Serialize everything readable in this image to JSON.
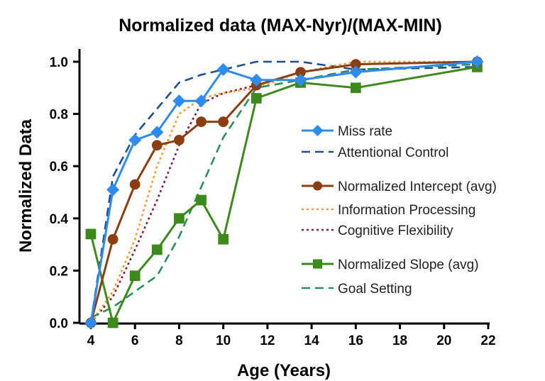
{
  "chart_data": {
    "type": "line",
    "title": "Normalized data (MAX-Nyr)/(MAX-MIN)",
    "xlabel": "Age (Years)",
    "ylabel": "Normalized Data",
    "xlim": [
      4,
      22
    ],
    "ylim": [
      0,
      1.0
    ],
    "xticks": [
      4,
      6,
      8,
      10,
      12,
      14,
      16,
      18,
      20,
      22
    ],
    "yticks": [
      0.0,
      0.2,
      0.4,
      0.6,
      0.8,
      1.0
    ],
    "xtick_labels": [
      "4",
      "6",
      "8",
      "10",
      "12",
      "14",
      "16",
      "18",
      "20",
      "22"
    ],
    "ytick_labels": [
      "0.0",
      "0.2",
      "0.4",
      "0.6",
      "0.8",
      "1.0"
    ],
    "grid": false,
    "legend_position": "right",
    "series": [
      {
        "name": "Miss rate",
        "style": "solid",
        "marker": "diamond",
        "color": "#2e8bf0",
        "x": [
          4,
          5,
          6,
          7,
          8,
          9,
          10,
          11.5,
          13.5,
          16,
          21.5
        ],
        "y": [
          0.0,
          0.51,
          0.7,
          0.73,
          0.85,
          0.85,
          0.97,
          0.93,
          0.93,
          0.96,
          1.0
        ]
      },
      {
        "name": "Attentional Control",
        "style": "dashed",
        "marker": "none",
        "color": "#1f4e91",
        "x": [
          4,
          5,
          6,
          7,
          8,
          9,
          10,
          11.5,
          13.5,
          16,
          21.5
        ],
        "y": [
          0.0,
          0.56,
          0.72,
          0.82,
          0.92,
          0.95,
          0.97,
          1.0,
          1.0,
          0.97,
          0.98
        ]
      },
      {
        "name": "Normalized Intercept (avg)",
        "style": "solid",
        "marker": "circle",
        "color": "#8b3e12",
        "x": [
          4,
          5,
          6,
          7,
          8,
          9,
          10,
          11.5,
          13.5,
          16,
          21.5
        ],
        "y": [
          0.0,
          0.32,
          0.53,
          0.68,
          0.7,
          0.77,
          0.77,
          0.91,
          0.96,
          0.99,
          1.0
        ]
      },
      {
        "name": "Information Processing",
        "style": "dotted",
        "marker": "none",
        "color": "#f49a2c",
        "x": [
          4,
          5,
          6,
          7,
          8,
          9,
          10,
          11.5,
          13.5,
          16,
          21.5
        ],
        "y": [
          0.0,
          0.12,
          0.32,
          0.6,
          0.8,
          0.86,
          0.88,
          0.9,
          0.96,
          1.0,
          1.0
        ]
      },
      {
        "name": "Cognitive Flexibility",
        "style": "dotted",
        "marker": "none",
        "color": "#7a1f3d",
        "x": [
          4,
          5,
          6,
          7,
          8,
          9,
          10,
          11.5,
          13.5,
          16,
          21.5
        ],
        "y": [
          0.0,
          0.1,
          0.28,
          0.47,
          0.68,
          0.84,
          0.88,
          0.91,
          0.96,
          0.99,
          1.0
        ]
      },
      {
        "name": "Normalized Slope (avg)",
        "style": "solid",
        "marker": "square",
        "color": "#3c8a1c",
        "x": [
          4,
          5,
          6,
          7,
          8,
          9,
          10,
          11.5,
          13.5,
          16,
          21.5
        ],
        "y": [
          0.34,
          0.0,
          0.18,
          0.28,
          0.4,
          0.47,
          0.32,
          0.86,
          0.92,
          0.9,
          0.98
        ]
      },
      {
        "name": "Goal Setting",
        "style": "dashed",
        "marker": "none",
        "color": "#2a8f5e",
        "x": [
          4,
          5,
          6,
          7,
          8,
          9,
          10,
          11.5,
          13.5,
          16,
          21.5
        ],
        "y": [
          0.02,
          0.06,
          0.12,
          0.18,
          0.33,
          0.52,
          0.71,
          0.9,
          0.93,
          0.97,
          0.99
        ]
      }
    ],
    "legend_groups": [
      [
        0,
        1
      ],
      [
        2,
        3,
        4
      ],
      [
        5,
        6
      ]
    ]
  }
}
